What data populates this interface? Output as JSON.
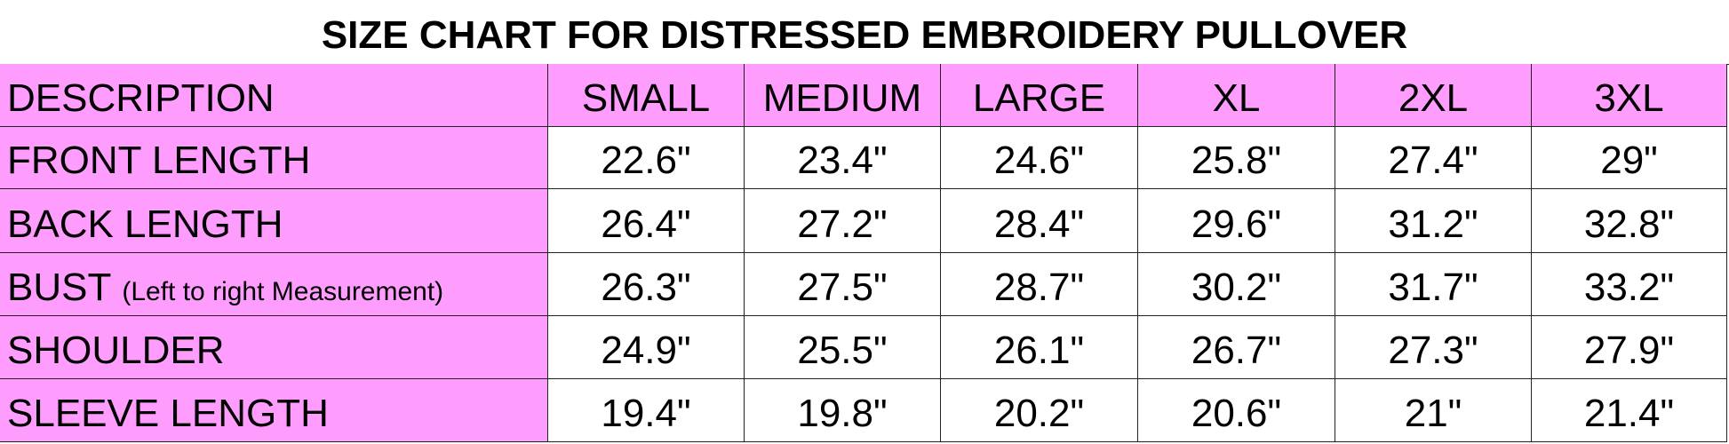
{
  "title": "SIZE CHART FOR DISTRESSED EMBROIDERY PULLOVER",
  "table": {
    "header": [
      "DESCRIPTION",
      "SMALL",
      "MEDIUM",
      "LARGE",
      "XL",
      "2XL",
      "3XL"
    ],
    "rows": [
      {
        "label": "FRONT LENGTH",
        "values": [
          "22.6\"",
          "23.4\"",
          "24.6\"",
          "25.8\"",
          "27.4\"",
          "29\""
        ]
      },
      {
        "label": "BACK LENGTH",
        "values": [
          "26.4\"",
          "27.2\"",
          "28.4\"",
          "29.6\"",
          "31.2\"",
          "32.8\""
        ]
      },
      {
        "label": "BUST",
        "note": "(Left to right Measurement)",
        "values": [
          "26.3\"",
          "27.5\"",
          "28.7\"",
          "30.2\"",
          "31.7\"",
          "33.2\""
        ]
      },
      {
        "label": "SHOULDER",
        "values": [
          "24.9\"",
          "25.5\"",
          "26.1\"",
          "26.7\"",
          "27.3\"",
          "27.9\""
        ]
      },
      {
        "label": "SLEEVE LENGTH",
        "values": [
          "19.4\"",
          "19.8\"",
          "20.2\"",
          "20.6\"",
          "21\"",
          "21.4\""
        ]
      }
    ]
  }
}
